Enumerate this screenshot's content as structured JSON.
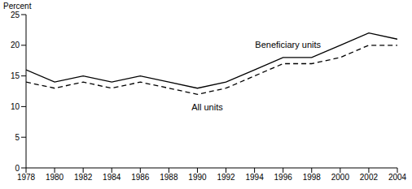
{
  "chart_data": {
    "type": "line",
    "y_label": "Percent",
    "x": [
      1978,
      1980,
      1982,
      1984,
      1986,
      1988,
      1990,
      1992,
      1994,
      1996,
      1998,
      2000,
      2002,
      2004
    ],
    "series": [
      {
        "name": "Beneficiary units",
        "color": "#000000",
        "line_style": "solid",
        "values": [
          16,
          14,
          15,
          14,
          15,
          14,
          13,
          14,
          16,
          18,
          18,
          20,
          22,
          21
        ]
      },
      {
        "name": "All units",
        "color": "#000000",
        "line_style": "dashed",
        "values": [
          14,
          13,
          14,
          13,
          14,
          13,
          12,
          13,
          15,
          17,
          17,
          18,
          20,
          20
        ]
      }
    ],
    "xlim": [
      1978,
      2004
    ],
    "xticks": [
      1978,
      1980,
      1982,
      1984,
      1986,
      1988,
      1990,
      1992,
      1994,
      1996,
      1998,
      2000,
      2002,
      2004
    ],
    "ylim": [
      0,
      25
    ],
    "yticks": [
      0,
      5,
      10,
      15,
      20,
      25
    ],
    "grid": false
  }
}
